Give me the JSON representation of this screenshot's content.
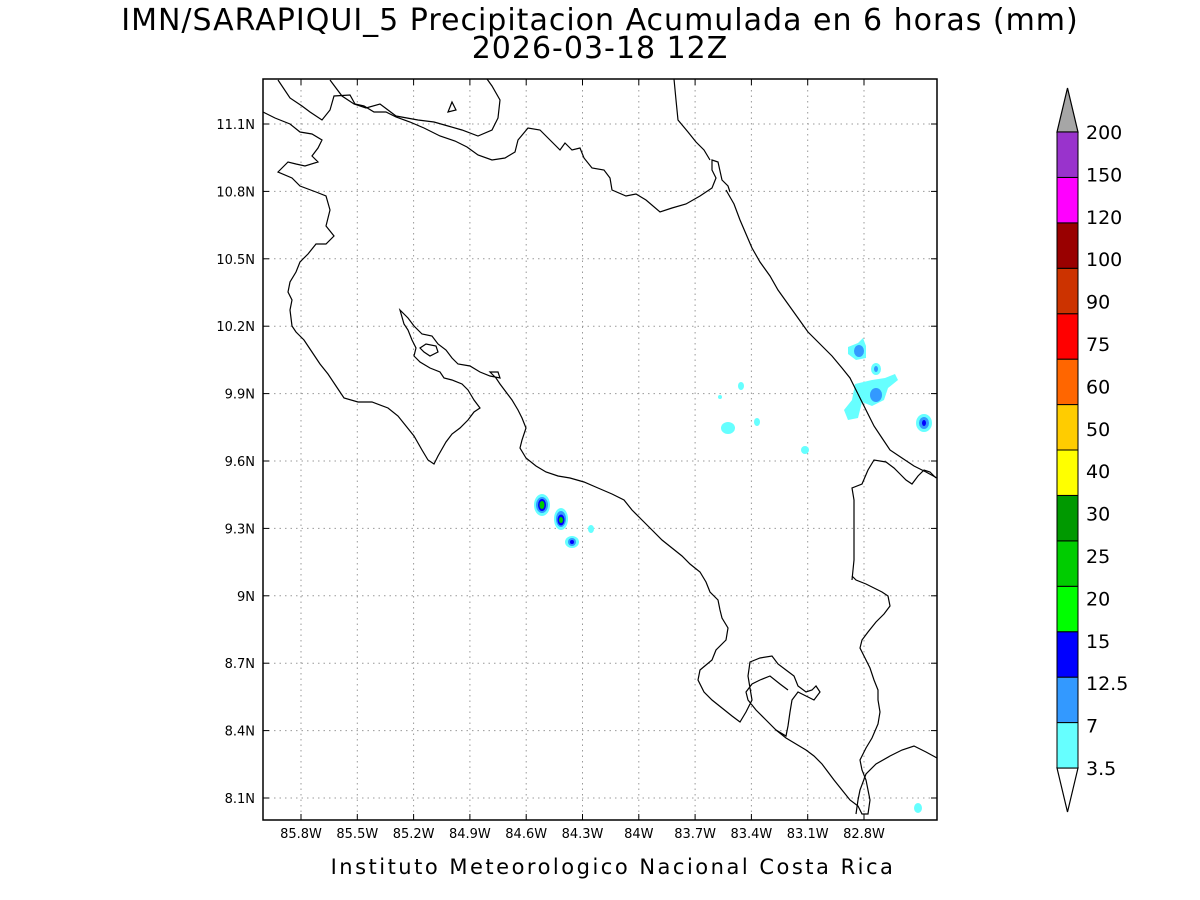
{
  "title": {
    "line1": "IMN/SARAPIQUI_5 Precipitacion Acumulada en 6 horas (mm)",
    "line2": "2026-03-18 12Z"
  },
  "map": {
    "lon_range": [
      -86.0,
      -82.5
    ],
    "lat_range": [
      8.0,
      11.3
    ],
    "grid": "dotted",
    "x_ticks": [
      "85.8W",
      "85.5W",
      "85.2W",
      "84.9W",
      "84.6W",
      "84.3W",
      "84W",
      "83.7W",
      "83.4W",
      "83.1W",
      "82.8W"
    ],
    "y_ticks": [
      "11.1N",
      "10.8N",
      "10.5N",
      "10.2N",
      "9.9N",
      "9.6N",
      "9.3N",
      "9N",
      "8.7N",
      "8.4N",
      "8.1N"
    ]
  },
  "colorbar": {
    "levels": [
      "3.5",
      "7",
      "12.5",
      "15",
      "20",
      "25",
      "30",
      "40",
      "50",
      "60",
      "75",
      "90",
      "100",
      "120",
      "150",
      "200"
    ],
    "colors": [
      "#66ffff",
      "#3399ff",
      "#0000ff",
      "#00ff00",
      "#00cc00",
      "#009900",
      "#ffff00",
      "#ffcc00",
      "#ff6600",
      "#ff0000",
      "#cc3300",
      "#990000",
      "#ff00ff",
      "#9933cc",
      "#f2f2f2",
      "#a6a6a6"
    ]
  },
  "footer": "Instituto Meteorologico Nacional Costa Rica"
}
